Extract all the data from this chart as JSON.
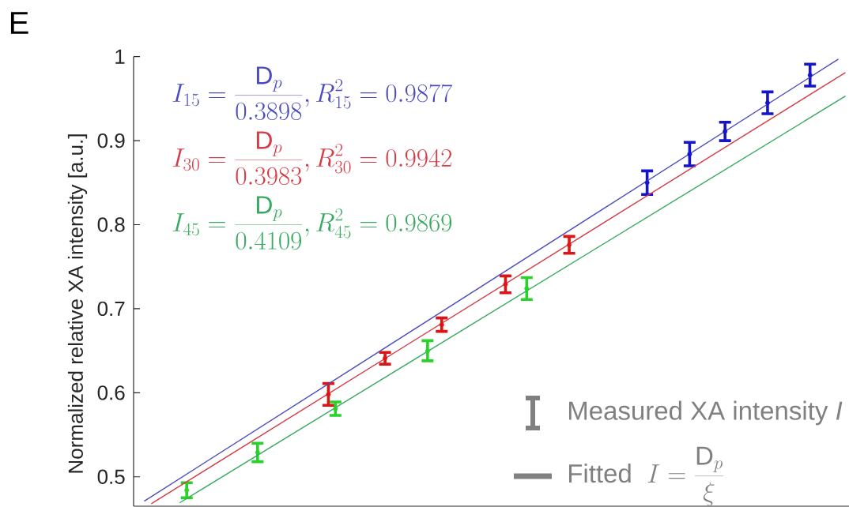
{
  "chart_data": {
    "type": "scatter",
    "title": "E",
    "ylabel": "Normalized relative XA intensity [a.u.]",
    "annotations": [
      "I_{15} = \\frac{\\mathsf{D}_p}{0.3898}, R_{15}^2 = 0.9877",
      "I_{30} = \\frac{\\mathsf{D}_p}{0.3983}, R_{30}^2 = 0.9942",
      "I_{45} = \\frac{\\mathsf{D}_p}{0.4109}, R_{45}^2 = 0.9869"
    ],
    "categories": [
      null,
      null,
      null,
      null,
      null,
      null,
      null,
      null,
      null,
      null,
      null,
      null,
      null,
      null,
      null,
      null,
      null,
      null,
      null,
      null,
      null,
      null,
      null,
      null,
      null,
      null,
      null,
      null,
      null,
      null,
      null,
      null,
      null,
      null,
      null,
      null,
      null,
      null,
      null,
      null,
      null,
      null,
      null,
      null,
      null,
      null,
      null,
      null,
      null,
      null,
      null,
      null,
      null,
      null,
      null,
      null,
      null,
      null,
      null,
      null,
      null,
      null,
      null,
      null,
      null,
      null,
      null,
      null,
      null,
      null,
      null,
      null,
      null,
      null,
      null,
      null,
      null,
      null,
      null,
      null,
      null,
      null,
      null,
      null,
      null,
      null,
      null,
      null,
      null,
      null,
      null,
      null,
      null,
      null,
      null,
      null,
      null,
      null,
      null,
      null,
      null
    ],
    "ylim": [
      0.465,
      1
    ],
    "yticks": [
      0.5,
      0.6,
      0.7,
      0.8,
      0.9,
      1
    ],
    "legend": "bottom right",
    "series": [
      {
        "color": "#1414c8",
        "values": [
          null,
          null,
          null,
          null,
          null,
          null,
          null,
          null,
          null,
          null,
          null,
          null,
          null,
          null,
          null,
          null,
          null,
          null,
          null,
          null,
          null,
          null,
          null,
          null,
          null,
          null,
          null,
          null,
          null,
          null,
          null,
          null,
          null,
          null,
          null,
          null,
          null,
          null,
          null,
          null,
          null,
          null,
          null,
          null,
          null,
          null,
          null,
          null,
          null,
          null,
          null,
          null,
          null,
          null,
          null,
          null,
          null,
          null,
          null,
          null,
          null,
          null,
          null,
          null,
          null,
          null,
          null,
          null,
          null,
          null,
          null,
          null,
          0.85,
          null,
          null,
          null,
          null,
          null,
          0.884,
          null,
          null,
          null,
          null,
          0.911,
          null,
          null,
          null,
          null,
          null,
          0.945,
          null,
          null,
          null,
          null,
          null,
          0.978,
          null,
          null,
          null,
          null,
          null
        ],
        "errors": [
          null,
          null,
          null,
          null,
          null,
          null,
          null,
          null,
          null,
          null,
          null,
          null,
          null,
          null,
          null,
          null,
          null,
          null,
          null,
          null,
          null,
          null,
          null,
          null,
          null,
          null,
          null,
          null,
          null,
          null,
          null,
          null,
          null,
          null,
          null,
          null,
          null,
          null,
          null,
          null,
          null,
          null,
          null,
          null,
          null,
          null,
          null,
          null,
          null,
          null,
          null,
          null,
          null,
          null,
          null,
          null,
          null,
          null,
          null,
          null,
          null,
          null,
          null,
          null,
          null,
          null,
          null,
          null,
          null,
          null,
          null,
          null,
          0.014,
          null,
          null,
          null,
          null,
          null,
          0.014,
          null,
          null,
          null,
          null,
          0.011,
          null,
          null,
          null,
          null,
          null,
          0.013,
          null,
          null,
          null,
          null,
          null,
          0.013,
          null,
          null,
          null,
          null,
          null
        ]
      },
      {
        "color": "#dc1414",
        "values": [
          null,
          null,
          null,
          null,
          null,
          null,
          null,
          null,
          null,
          null,
          null,
          null,
          null,
          null,
          null,
          null,
          null,
          null,
          null,
          null,
          null,
          null,
          null,
          null,
          null,
          null,
          null,
          0.598,
          null,
          null,
          null,
          null,
          null,
          null,
          null,
          0.641,
          null,
          null,
          null,
          null,
          null,
          null,
          null,
          0.681,
          null,
          null,
          null,
          null,
          null,
          null,
          null,
          null,
          0.729,
          null,
          null,
          null,
          null,
          null,
          null,
          null,
          null,
          0.776,
          null,
          null,
          null,
          null,
          null,
          null,
          null,
          null,
          null,
          null,
          null,
          null,
          null,
          null,
          null,
          null,
          null,
          null,
          null,
          null,
          null,
          null,
          null,
          null,
          null,
          null,
          null,
          null,
          null,
          null,
          null,
          null,
          null,
          null,
          null,
          null,
          null,
          null,
          null
        ],
        "errors": [
          null,
          null,
          null,
          null,
          null,
          null,
          null,
          null,
          null,
          null,
          null,
          null,
          null,
          null,
          null,
          null,
          null,
          null,
          null,
          null,
          null,
          null,
          null,
          null,
          null,
          null,
          null,
          0.013,
          null,
          null,
          null,
          null,
          null,
          null,
          null,
          0.007,
          null,
          null,
          null,
          null,
          null,
          null,
          null,
          0.008,
          null,
          null,
          null,
          null,
          null,
          null,
          null,
          null,
          0.01,
          null,
          null,
          null,
          null,
          null,
          null,
          null,
          null,
          0.01,
          null,
          null,
          null,
          null,
          null,
          null,
          null,
          null,
          null,
          null,
          null,
          null,
          null,
          null,
          null,
          null,
          null,
          null,
          null,
          null,
          null,
          null,
          null,
          null,
          null,
          null,
          null,
          null,
          null,
          null,
          null,
          null,
          null,
          null,
          null,
          null,
          null,
          null,
          null
        ]
      },
      {
        "color": "#28d228",
        "values": [
          null,
          null,
          null,
          null,
          null,
          null,
          null,
          0.484,
          null,
          null,
          null,
          null,
          null,
          null,
          null,
          null,
          null,
          0.529,
          null,
          null,
          null,
          null,
          null,
          null,
          null,
          null,
          null,
          null,
          0.581,
          null,
          null,
          null,
          null,
          null,
          null,
          null,
          null,
          null,
          null,
          null,
          null,
          0.65,
          null,
          null,
          null,
          null,
          null,
          null,
          null,
          null,
          null,
          null,
          null,
          null,
          null,
          0.724,
          null,
          null,
          null,
          null,
          null,
          null,
          null,
          null,
          null,
          null,
          null,
          null,
          null,
          null,
          null,
          null,
          null,
          null,
          null,
          null,
          null,
          null,
          null,
          null,
          null,
          null,
          null,
          null,
          null,
          null,
          null,
          null,
          null,
          null,
          null,
          null,
          null,
          null,
          null,
          null,
          null,
          null,
          null,
          null,
          null
        ],
        "errors": [
          null,
          null,
          null,
          null,
          null,
          null,
          null,
          0.009,
          null,
          null,
          null,
          null,
          null,
          null,
          null,
          null,
          null,
          0.011,
          null,
          null,
          null,
          null,
          null,
          null,
          null,
          null,
          null,
          null,
          0.008,
          null,
          null,
          null,
          null,
          null,
          null,
          null,
          null,
          null,
          null,
          null,
          null,
          0.012,
          null,
          null,
          null,
          null,
          null,
          null,
          null,
          null,
          null,
          null,
          null,
          null,
          null,
          0.013,
          null,
          null,
          null,
          null,
          null,
          null,
          null,
          null,
          null,
          null,
          null,
          null,
          null,
          null,
          null,
          null,
          null,
          null,
          null,
          null,
          null,
          null,
          null,
          null,
          null,
          null,
          null,
          null,
          null,
          null,
          null,
          null,
          null,
          null,
          null,
          null,
          null,
          null,
          null,
          null,
          null,
          null,
          null,
          null,
          null
        ]
      },
      {
        "type": "line",
        "color": "#4b4bc0",
        "values": [
          null,
          0.471,
          null,
          null,
          null,
          null,
          null,
          null,
          null,
          null,
          null,
          null,
          null,
          null,
          null,
          null,
          null,
          null,
          null,
          null,
          null,
          null,
          null,
          null,
          null,
          null,
          null,
          null,
          null,
          null,
          null,
          null,
          null,
          null,
          null,
          null,
          null,
          null,
          null,
          null,
          null,
          null,
          null,
          null,
          null,
          null,
          null,
          null,
          null,
          null,
          null,
          null,
          null,
          null,
          null,
          null,
          null,
          null,
          null,
          null,
          null,
          null,
          null,
          null,
          null,
          null,
          null,
          null,
          null,
          null,
          null,
          null,
          null,
          null,
          null,
          null,
          null,
          null,
          null,
          null,
          null,
          null,
          null,
          null,
          null,
          null,
          null,
          null,
          null,
          null,
          null,
          null,
          null,
          null,
          null,
          null,
          null,
          null,
          null,
          0.997,
          null
        ]
      },
      {
        "type": "line",
        "color": "#d43c46",
        "values": [
          null,
          null,
          0.468,
          null,
          null,
          null,
          null,
          null,
          null,
          null,
          null,
          null,
          null,
          null,
          null,
          null,
          null,
          null,
          null,
          null,
          null,
          null,
          null,
          null,
          null,
          null,
          null,
          null,
          null,
          null,
          null,
          null,
          null,
          null,
          null,
          null,
          null,
          null,
          null,
          null,
          null,
          null,
          null,
          null,
          null,
          null,
          null,
          null,
          null,
          null,
          null,
          null,
          null,
          null,
          null,
          null,
          null,
          null,
          null,
          null,
          null,
          null,
          null,
          null,
          null,
          null,
          null,
          null,
          null,
          null,
          null,
          null,
          null,
          null,
          null,
          null,
          null,
          null,
          null,
          null,
          null,
          null,
          null,
          null,
          null,
          null,
          null,
          null,
          null,
          null,
          null,
          null,
          null,
          null,
          null,
          null,
          null,
          null,
          null,
          null,
          0.981
        ]
      },
      {
        "type": "line",
        "color": "#37aa5f",
        "values": [
          null,
          null,
          null,
          null,
          null,
          null,
          0.469,
          null,
          null,
          null,
          null,
          null,
          null,
          null,
          null,
          null,
          null,
          null,
          null,
          null,
          null,
          null,
          null,
          null,
          null,
          null,
          null,
          null,
          null,
          null,
          null,
          null,
          null,
          null,
          null,
          null,
          null,
          null,
          null,
          null,
          null,
          null,
          null,
          null,
          null,
          null,
          null,
          null,
          null,
          null,
          null,
          null,
          null,
          null,
          null,
          null,
          null,
          null,
          null,
          null,
          null,
          null,
          null,
          null,
          null,
          null,
          null,
          null,
          null,
          null,
          null,
          null,
          null,
          null,
          null,
          null,
          null,
          null,
          null,
          null,
          null,
          null,
          null,
          null,
          null,
          null,
          null,
          null,
          null,
          null,
          null,
          null,
          null,
          null,
          null,
          null,
          null,
          null,
          null,
          null,
          0.953
        ]
      },
      {
        "name": "Measured XA intensity *I*",
        "color": "#808080",
        "values": [
          null,
          null,
          null,
          null,
          null,
          null,
          null,
          null,
          null,
          null,
          null,
          null,
          null,
          null,
          null,
          null,
          null,
          null,
          null,
          null,
          null,
          null,
          null,
          null,
          null,
          null,
          null,
          null,
          null,
          null,
          null,
          null,
          null,
          null,
          null,
          null,
          null,
          null,
          null,
          null,
          null,
          null,
          null,
          null,
          null,
          null,
          null,
          null,
          null,
          null,
          null,
          null,
          null,
          null,
          null,
          null,
          null,
          null,
          null,
          null,
          null,
          null,
          null,
          null,
          null,
          null,
          null,
          null,
          null,
          null,
          null,
          null,
          null,
          null,
          null,
          null,
          null,
          null,
          null,
          null,
          null,
          null,
          null,
          null,
          null,
          null,
          null,
          null,
          null,
          null,
          null,
          null,
          null,
          null,
          null,
          null,
          null,
          null,
          null,
          null,
          null
        ]
      },
      {
        "type": "line",
        "name": "\\mathsf{Fitted}\\;\\; I = \\frac{\\mathsf{D}_p}{\\xi}",
        "color": "#808080",
        "values": [
          null,
          null,
          null,
          null,
          null,
          null,
          null,
          null,
          null,
          null,
          null,
          null,
          null,
          null,
          null,
          null,
          null,
          null,
          null,
          null,
          null,
          null,
          null,
          null,
          null,
          null,
          null,
          null,
          null,
          null,
          null,
          null,
          null,
          null,
          null,
          null,
          null,
          null,
          null,
          null,
          null,
          null,
          null,
          null,
          null,
          null,
          null,
          null,
          null,
          null,
          null,
          null,
          null,
          null,
          null,
          null,
          null,
          null,
          null,
          null,
          null,
          null,
          null,
          null,
          null,
          null,
          null,
          null,
          null,
          null,
          null,
          null,
          null,
          null,
          null,
          null,
          null,
          null,
          null,
          null,
          null,
          null,
          null,
          null,
          null,
          null,
          null,
          null,
          null,
          null,
          null,
          null,
          null,
          null,
          null,
          null,
          null,
          null,
          null,
          null,
          null
        ]
      }
    ]
  }
}
